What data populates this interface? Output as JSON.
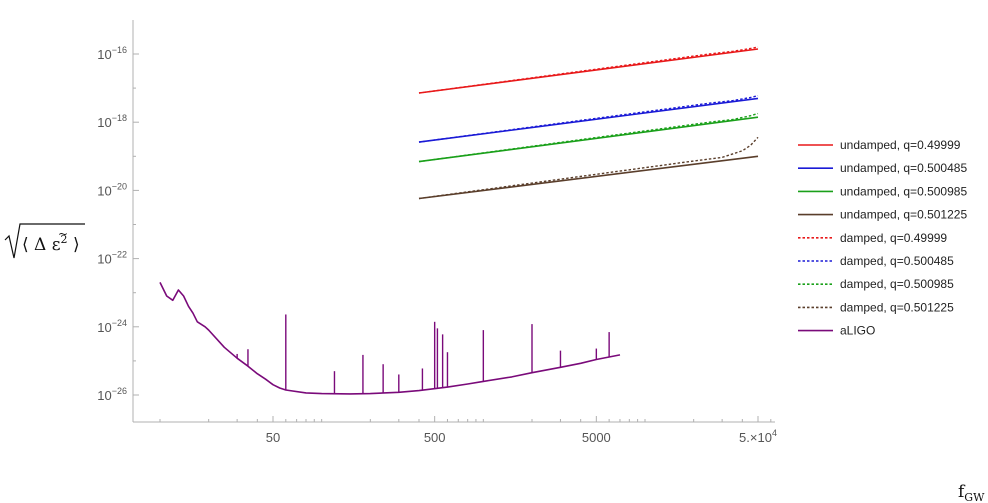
{
  "chart_data": {
    "type": "line",
    "x_scale": "log",
    "y_scale": "log",
    "xlim": [
      10,
      60000
    ],
    "ylim": [
      1e-26,
      1e-16
    ],
    "x_ticks": [
      {
        "value": 50,
        "label": "50"
      },
      {
        "value": 500,
        "label": "500"
      },
      {
        "value": 5000,
        "label": "5000"
      },
      {
        "value": 50000,
        "label": "5.×10",
        "label_sup": "4"
      }
    ],
    "y_ticks": [
      {
        "value": 1e-16,
        "base": "10",
        "exp": "−16"
      },
      {
        "value": 1e-18,
        "base": "10",
        "exp": "−18"
      },
      {
        "value": 1e-20,
        "base": "10",
        "exp": "−20"
      },
      {
        "value": 1e-22,
        "base": "10",
        "exp": "−22"
      },
      {
        "value": 1e-24,
        "base": "10",
        "exp": "−24"
      },
      {
        "value": 1e-26,
        "base": "10",
        "exp": "−26"
      }
    ],
    "xlabel": {
      "base": "f",
      "sub": "GW"
    },
    "ylabel": {
      "base": "Δ",
      "tilde": "ε",
      "exp": "2"
    },
    "legend_position": "right",
    "series": [
      {
        "name": "undamped, q=0.49999",
        "color": "#e8191a",
        "dash": "solid",
        "x": [
          400,
          50000
        ],
        "y": [
          7.2e-18,
          1.4e-16
        ]
      },
      {
        "name": "undamped, q=0.500485",
        "color": "#1a1ad6",
        "dash": "solid",
        "x": [
          400,
          50000
        ],
        "y": [
          2.6e-19,
          5e-18
        ]
      },
      {
        "name": "undamped, q=0.500985",
        "color": "#1aa01a",
        "dash": "solid",
        "x": [
          400,
          50000
        ],
        "y": [
          7e-20,
          1.4e-18
        ]
      },
      {
        "name": "undamped, q=0.501225",
        "color": "#5a3e2b",
        "dash": "solid",
        "x": [
          400,
          50000
        ],
        "y": [
          5.8e-21,
          1e-19
        ]
      },
      {
        "name": "damped, q=0.49999",
        "color": "#e8191a",
        "dash": "dotted",
        "x": [
          400,
          25000,
          35000,
          45000,
          50000
        ],
        "y": [
          7.2e-18,
          1e-16,
          1.2e-16,
          1.45e-16,
          1.6e-16
        ]
      },
      {
        "name": "damped, q=0.500485",
        "color": "#1a1ad6",
        "dash": "dotted",
        "x": [
          400,
          25000,
          35000,
          45000,
          50000
        ],
        "y": [
          2.6e-19,
          3.6e-18,
          4.3e-18,
          5.3e-18,
          6e-18
        ]
      },
      {
        "name": "damped, q=0.500985",
        "color": "#1aa01a",
        "dash": "dotted",
        "x": [
          400,
          25000,
          35000,
          45000,
          50000
        ],
        "y": [
          7e-20,
          1e-18,
          1.2e-18,
          1.55e-18,
          1.8e-18
        ]
      },
      {
        "name": "damped, q=0.501225",
        "color": "#5a3e2b",
        "dash": "dotted",
        "x": [
          400,
          20000,
          30000,
          40000,
          45000,
          50000
        ],
        "y": [
          5.8e-21,
          7.3e-20,
          9.3e-20,
          1.45e-19,
          2.1e-19,
          3.6e-19
        ]
      },
      {
        "name": "aLIGO",
        "color": "#7a0a7a",
        "dash": "solid",
        "x": [
          10,
          11,
          12,
          13,
          14,
          15,
          16,
          17,
          19,
          20,
          25,
          30,
          35,
          40,
          45,
          50,
          55,
          60,
          80,
          100,
          150,
          200,
          300,
          400,
          600,
          800,
          1000,
          1500,
          2000,
          3000,
          4000,
          5000,
          6000,
          7000
        ],
        "y": [
          2e-23,
          8e-24,
          6e-24,
          1.2e-23,
          8e-24,
          4e-24,
          2.5e-24,
          1.4e-24,
          1e-24,
          8e-25,
          2.5e-25,
          1.2e-25,
          7e-26,
          4.2e-26,
          2.9e-26,
          2e-26,
          1.6e-26,
          1.4e-26,
          1.15e-26,
          1.1e-26,
          1.08e-26,
          1.1e-26,
          1.2e-26,
          1.35e-26,
          1.7e-26,
          2.1e-26,
          2.5e-26,
          3.4e-26,
          4.5e-26,
          6.5e-26,
          8.5e-26,
          1.1e-25,
          1.3e-25,
          1.5e-25
        ],
        "spikes": [
          {
            "x": 30,
            "y": 1.6e-25
          },
          {
            "x": 35,
            "y": 2.2e-25
          },
          {
            "x": 60,
            "y": 2.3e-24
          },
          {
            "x": 120,
            "y": 5e-26
          },
          {
            "x": 180,
            "y": 1.5e-25
          },
          {
            "x": 240,
            "y": 8e-26
          },
          {
            "x": 300,
            "y": 4e-26
          },
          {
            "x": 420,
            "y": 6e-26
          },
          {
            "x": 500,
            "y": 1.4e-24
          },
          {
            "x": 520,
            "y": 9e-25
          },
          {
            "x": 560,
            "y": 6e-25
          },
          {
            "x": 600,
            "y": 1.8e-25
          },
          {
            "x": 1000,
            "y": 8e-25
          },
          {
            "x": 2000,
            "y": 1.2e-24
          },
          {
            "x": 3000,
            "y": 2e-25
          },
          {
            "x": 5000,
            "y": 2.3e-25
          },
          {
            "x": 6000,
            "y": 7e-25
          }
        ]
      }
    ]
  }
}
